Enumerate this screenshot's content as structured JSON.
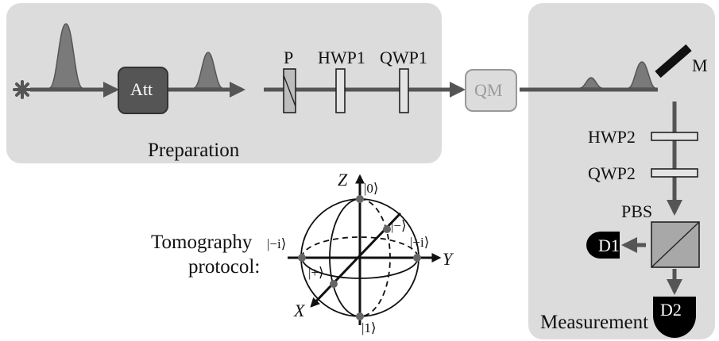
{
  "preparation": {
    "title": "Preparation",
    "attenuator_label": "Att",
    "components": {
      "polarizer": "P",
      "hwp": "HWP1",
      "qwp": "QWP1"
    }
  },
  "quantum_memory": {
    "label": "QM"
  },
  "measurement": {
    "title": "Measurement",
    "mirror": "M",
    "hwp": "HWP2",
    "qwp": "QWP2",
    "pbs": "PBS",
    "detector1": "D1",
    "detector2": "D2"
  },
  "tomography": {
    "label_line1": "Tomography",
    "label_line2": "protocol:",
    "axes": {
      "x": "X",
      "y": "Y",
      "z": "Z"
    },
    "states": {
      "zero": "|0⟩",
      "one": "|1⟩",
      "plus": "|+⟩",
      "minus": "|−⟩",
      "plus_i": "|+i⟩",
      "minus_i": "|−i⟩"
    }
  },
  "colors": {
    "panel_fill": "#dcdcdc",
    "beam": "#555555",
    "pulse": "#777777",
    "attenuator": "#555555",
    "detector": "#000000"
  }
}
